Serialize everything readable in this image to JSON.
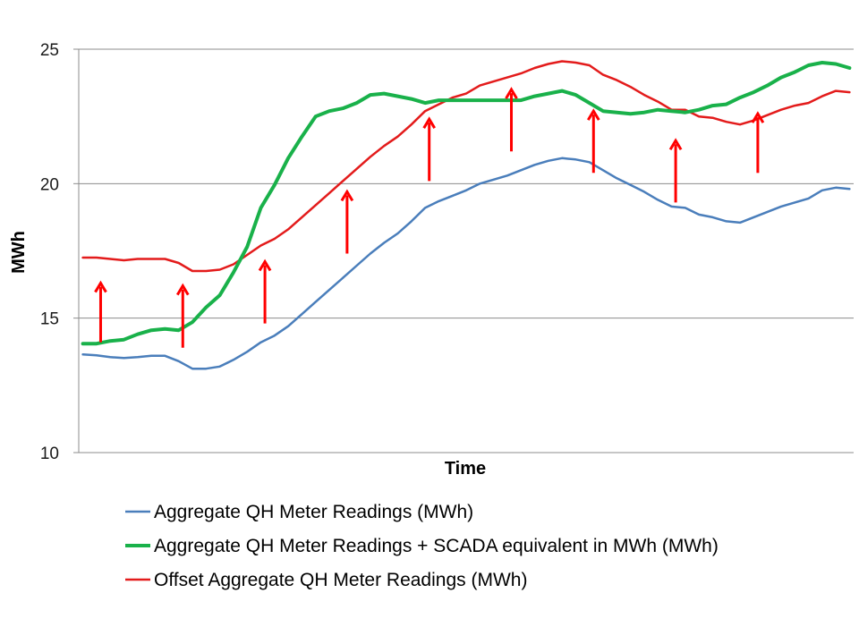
{
  "chart_data": {
    "type": "line",
    "title": "",
    "xlabel": "Time",
    "ylabel": "MWh",
    "ylim": [
      10,
      25
    ],
    "yticks": [
      10,
      15,
      20,
      25
    ],
    "grid": "horizontal",
    "legend_position": "bottom",
    "x": [
      1,
      2,
      3,
      4,
      5,
      6,
      7,
      8,
      9,
      10,
      11,
      12,
      13,
      14,
      15,
      16,
      17,
      18,
      19,
      20,
      21,
      22,
      23,
      24,
      25,
      26,
      27,
      28,
      29,
      30,
      31,
      32,
      33,
      34,
      35,
      36,
      37,
      38,
      39,
      40,
      41,
      42,
      43,
      44,
      45,
      46,
      47,
      48,
      49,
      50,
      51,
      52,
      53,
      54,
      55,
      56,
      57
    ],
    "series": [
      {
        "name": "Aggregate QH Meter Readings (MWh)",
        "color": "#4a7ebb",
        "line_width": 2.5,
        "values": [
          13.65,
          13.62,
          13.55,
          13.52,
          13.55,
          13.6,
          13.6,
          13.4,
          13.12,
          13.12,
          13.2,
          13.45,
          13.75,
          14.1,
          14.35,
          14.7,
          15.15,
          15.6,
          16.05,
          16.5,
          16.95,
          17.4,
          17.8,
          18.15,
          18.6,
          19.1,
          19.35,
          19.55,
          19.75,
          20.0,
          20.15,
          20.3,
          20.5,
          20.7,
          20.85,
          20.95,
          20.9,
          20.8,
          20.5,
          20.2,
          19.95,
          19.7,
          19.4,
          19.15,
          19.1,
          18.85,
          18.75,
          18.6,
          18.55,
          18.75,
          18.95,
          19.15,
          19.3,
          19.45,
          19.75,
          19.85,
          19.8
        ]
      },
      {
        "name": "Aggregate QH Meter Readings + SCADA equivalent in MWh (MWh)",
        "color": "#19b14a",
        "line_width": 4,
        "values": [
          14.05,
          14.05,
          14.15,
          14.2,
          14.4,
          14.55,
          14.6,
          14.55,
          14.85,
          15.4,
          15.85,
          16.7,
          17.65,
          19.1,
          19.95,
          20.95,
          21.75,
          22.5,
          22.7,
          22.8,
          23.0,
          23.3,
          23.35,
          23.25,
          23.15,
          23.0,
          23.1,
          23.1,
          23.1,
          23.1,
          23.1,
          23.1,
          23.1,
          23.25,
          23.35,
          23.45,
          23.3,
          23.0,
          22.7,
          22.65,
          22.6,
          22.65,
          22.75,
          22.7,
          22.65,
          22.75,
          22.9,
          22.95,
          23.2,
          23.4,
          23.65,
          23.95,
          24.15,
          24.4,
          24.5,
          24.45,
          24.3
        ]
      },
      {
        "name": "Offset Aggregate QH Meter Readings (MWh)",
        "color": "#e31b1b",
        "line_width": 2.5,
        "values": [
          17.25,
          17.25,
          17.2,
          17.15,
          17.2,
          17.2,
          17.2,
          17.05,
          16.75,
          16.75,
          16.8,
          17.0,
          17.35,
          17.7,
          17.95,
          18.3,
          18.75,
          19.2,
          19.65,
          20.1,
          20.55,
          21.0,
          21.4,
          21.75,
          22.2,
          22.7,
          22.95,
          23.2,
          23.35,
          23.65,
          23.8,
          23.95,
          24.1,
          24.3,
          24.45,
          24.55,
          24.5,
          24.4,
          24.05,
          23.85,
          23.6,
          23.3,
          23.05,
          22.75,
          22.75,
          22.5,
          22.45,
          22.3,
          22.2,
          22.35,
          22.55,
          22.75,
          22.9,
          23.0,
          23.25,
          23.45,
          23.4
        ]
      }
    ],
    "annotations": {
      "type": "upward-arrows",
      "color": "#ff0000",
      "arrows": [
        {
          "x": 2.3,
          "y_from": 14.1,
          "y_to": 16.3
        },
        {
          "x": 8.3,
          "y_from": 13.9,
          "y_to": 16.2
        },
        {
          "x": 14.3,
          "y_from": 14.8,
          "y_to": 17.1
        },
        {
          "x": 20.3,
          "y_from": 17.4,
          "y_to": 19.7
        },
        {
          "x": 26.3,
          "y_from": 20.1,
          "y_to": 22.4
        },
        {
          "x": 32.3,
          "y_from": 21.2,
          "y_to": 23.5
        },
        {
          "x": 38.3,
          "y_from": 20.4,
          "y_to": 22.7
        },
        {
          "x": 44.3,
          "y_from": 19.3,
          "y_to": 21.6
        },
        {
          "x": 50.3,
          "y_from": 20.4,
          "y_to": 22.6
        }
      ]
    }
  }
}
